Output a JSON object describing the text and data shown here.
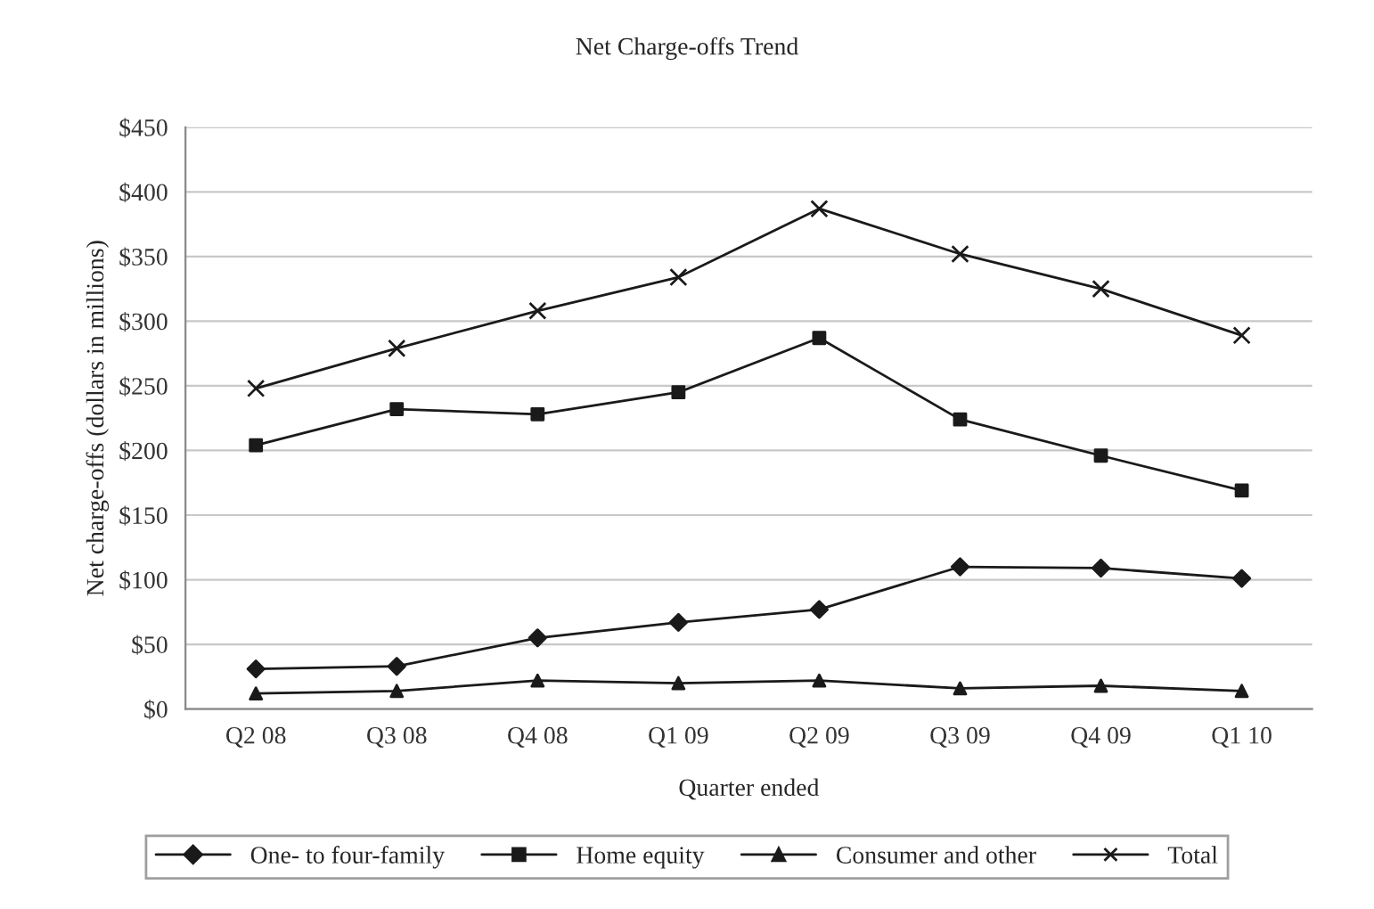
{
  "chart_data": {
    "type": "line",
    "title": "Net Charge-offs Trend",
    "xlabel": "Quarter ended",
    "ylabel": "Net charge-offs (dollars in millions)",
    "categories": [
      "Q2 08",
      "Q3 08",
      "Q4 08",
      "Q1 09",
      "Q2 09",
      "Q3 09",
      "Q4 09",
      "Q1 10"
    ],
    "series": [
      {
        "name": "One- to four-family",
        "color": "#1a1a1a",
        "marker": "diamond",
        "values": [
          31,
          33,
          55,
          67,
          77,
          110,
          109,
          101
        ]
      },
      {
        "name": "Home equity",
        "color": "#1a1a1a",
        "marker": "square",
        "values": [
          204,
          232,
          228,
          245,
          287,
          224,
          196,
          169
        ]
      },
      {
        "name": "Consumer and other",
        "color": "#1a1a1a",
        "marker": "triangle",
        "values": [
          12,
          14,
          22,
          20,
          22,
          16,
          18,
          14
        ]
      },
      {
        "name": "Total",
        "color": "#1a1a1a",
        "marker": "cross",
        "values": [
          248,
          279,
          308,
          334,
          387,
          352,
          325,
          289
        ]
      }
    ],
    "ylim": [
      0,
      450
    ],
    "yticks": [
      {
        "value": 0,
        "label": "$0"
      },
      {
        "value": 50,
        "label": "$50"
      },
      {
        "value": 100,
        "label": "$100"
      },
      {
        "value": 150,
        "label": "$150"
      },
      {
        "value": 200,
        "label": "$200"
      },
      {
        "value": 250,
        "label": "$250"
      },
      {
        "value": 300,
        "label": "$300"
      },
      {
        "value": 350,
        "label": "$350"
      },
      {
        "value": 400,
        "label": "$400"
      },
      {
        "value": 450,
        "label": "$450"
      }
    ],
    "grid": "y",
    "legend": "bottom",
    "line_style": "solid"
  }
}
